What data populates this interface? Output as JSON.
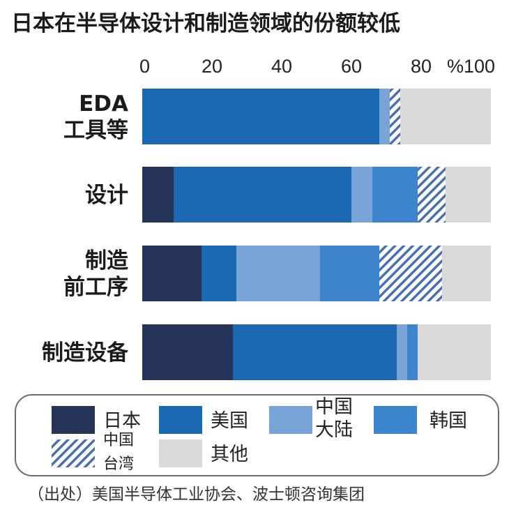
{
  "title": "日本在半导体设计和制造领域的份额较低",
  "source": "（出处）美国半导体工业协会、波士顿咨询集团",
  "colors": {
    "japan": "#27345a",
    "usa": "#1b68b3",
    "china_mainland": "#78a4d8",
    "korea": "#3c84cc",
    "taiwan_hatch": "#4a6fb0",
    "taiwan_bg": "#ffffff",
    "other": "#d9d9d9"
  },
  "chart_data": {
    "type": "bar",
    "orientation": "horizontal",
    "stacked": true,
    "xlim": [
      0,
      100
    ],
    "x_ticks": [
      "0",
      "20",
      "40",
      "60",
      "80",
      "%100"
    ],
    "categories": [
      {
        "lines": [
          "EDA",
          "工具等"
        ]
      },
      {
        "lines": [
          "设计"
        ]
      },
      {
        "lines": [
          "制造",
          "前工序"
        ]
      },
      {
        "lines": [
          "制造设备"
        ]
      }
    ],
    "series": [
      {
        "key": "japan",
        "values": [
          0,
          9,
          17,
          26
        ]
      },
      {
        "key": "usa",
        "values": [
          68,
          51,
          10,
          47
        ]
      },
      {
        "key": "china_mainland",
        "values": [
          3,
          6,
          24,
          3
        ]
      },
      {
        "key": "korea",
        "values": [
          0,
          13,
          17,
          3
        ]
      },
      {
        "key": "taiwan",
        "values": [
          3,
          8,
          18,
          0
        ]
      },
      {
        "key": "other",
        "values": [
          26,
          13,
          14,
          21
        ]
      }
    ],
    "legend": [
      {
        "key": "japan",
        "lines": [
          "日本"
        ]
      },
      {
        "key": "usa",
        "lines": [
          "美国"
        ]
      },
      {
        "key": "china_mainland",
        "lines": [
          "中国",
          "大陆"
        ]
      },
      {
        "key": "korea",
        "lines": [
          "韩国"
        ]
      },
      {
        "key": "taiwan",
        "lines": [
          "中国",
          "台湾"
        ]
      },
      {
        "key": "other",
        "lines": [
          "其他"
        ]
      }
    ]
  }
}
